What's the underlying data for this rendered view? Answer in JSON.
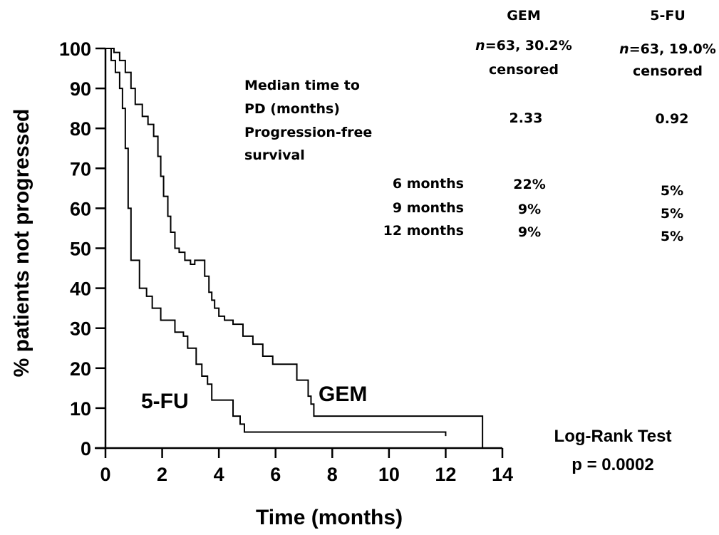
{
  "chart_data": {
    "type": "line",
    "step": true,
    "title": "",
    "xlabel": "Time (months)",
    "ylabel": "% patients not progressed",
    "xlim": [
      0,
      14
    ],
    "ylim": [
      0,
      100
    ],
    "x_ticks": [
      "0",
      "2",
      "4",
      "6",
      "8",
      "10",
      "12",
      "14"
    ],
    "y_ticks": [
      "0",
      "10",
      "20",
      "30",
      "40",
      "50",
      "60",
      "70",
      "80",
      "90",
      "100"
    ],
    "grid": false,
    "legend": "none",
    "series": [
      {
        "name": "GEM",
        "x": [
          0,
          0.3,
          0.5,
          0.7,
          0.9,
          1.05,
          1.3,
          1.5,
          1.7,
          1.85,
          1.95,
          2.05,
          2.2,
          2.3,
          2.45,
          2.6,
          2.8,
          3.0,
          3.15,
          3.5,
          3.65,
          3.75,
          3.85,
          4.0,
          4.2,
          4.5,
          4.85,
          5.2,
          5.55,
          5.9,
          6.2,
          6.5,
          6.75,
          7.15,
          7.25,
          7.35,
          13.3
        ],
        "y": [
          100,
          99,
          97,
          94,
          90,
          86,
          83,
          81,
          78,
          73,
          68,
          63,
          58,
          54,
          50,
          49,
          47,
          46,
          47,
          43,
          39,
          37,
          35,
          33,
          32,
          31,
          28,
          26,
          23,
          21,
          21,
          21,
          17,
          13,
          11,
          8,
          0
        ]
      },
      {
        "name": "5-FU",
        "x": [
          0,
          0.2,
          0.35,
          0.5,
          0.6,
          0.7,
          0.8,
          0.9,
          1.2,
          1.45,
          1.65,
          1.95,
          2.45,
          2.75,
          2.9,
          3.2,
          3.4,
          3.6,
          3.75,
          4.5,
          4.75,
          4.9,
          12.0
        ],
        "y": [
          100,
          97,
          94,
          90,
          85,
          75,
          60,
          47,
          40,
          38,
          35,
          32,
          29,
          28,
          25,
          21,
          18,
          16,
          12,
          8,
          6,
          4,
          3
        ]
      }
    ],
    "curve_labels": [
      "GEM",
      "5-FU"
    ],
    "annotation": {
      "log_rank_title": "Log-Rank Test",
      "log_rank_p": "p = 0.0002"
    },
    "summary_table": {
      "columns": [
        {
          "name": "GEM",
          "n_prefix": "n",
          "n_suffix": "=63, 30.2%",
          "censored": "censored"
        },
        {
          "name": "5-FU",
          "n_prefix": "n",
          "n_suffix": "=63, 19.0%",
          "censored": "censored"
        }
      ],
      "median_label_lines": [
        "Median time to",
        "PD (months)"
      ],
      "median_values": [
        "2.33",
        "0.92"
      ],
      "pfs_label_lines": [
        "Progression-free",
        "survival"
      ],
      "rows": [
        {
          "label": "6 months",
          "gem": "22%",
          "fu": "5%"
        },
        {
          "label": "9 months",
          "gem": "9%",
          "fu": "5%"
        },
        {
          "label": "12 months",
          "gem": "9%",
          "fu": "5%"
        }
      ]
    }
  }
}
